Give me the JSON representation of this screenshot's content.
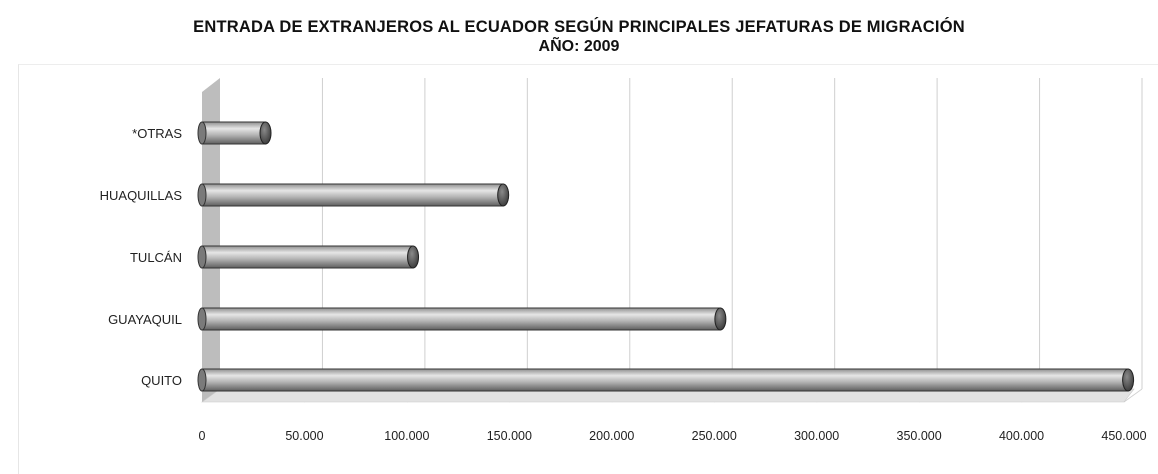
{
  "header": {
    "title": "ENTRADA DE EXTRANJEROS AL ECUADOR SEGÚN PRINCIPALES JEFATURAS DE MIGRACIÓN",
    "subtitle": "AÑO: 2009"
  },
  "colors": {
    "bar_light": "#d2d2d2",
    "bar_mid": "#a8a8a8",
    "bar_dark": "#6a6a6a",
    "wall": "#bdbdbd",
    "floor": "#e2e2e2",
    "grid": "#cfcfcf"
  },
  "chart_data": {
    "type": "bar",
    "orientation": "horizontal",
    "title": "ENTRADA DE EXTRANJEROS AL ECUADOR SEGÚN PRINCIPALES JEFATURAS DE MIGRACIÓN",
    "subtitle": "AÑO: 2009",
    "categories": [
      "*OTRAS",
      "HUAQUILLAS",
      "TULCÁN",
      "GUAYAQUIL",
      "QUITO"
    ],
    "values": [
      31000,
      147000,
      103000,
      253000,
      452000
    ],
    "xlim": [
      0,
      450000
    ],
    "x_ticks": [
      0,
      50000,
      100000,
      150000,
      200000,
      250000,
      300000,
      350000,
      400000,
      450000
    ],
    "x_tick_labels": [
      "0",
      "50.000",
      "100.000",
      "150.000",
      "200.000",
      "250.000",
      "300.000",
      "350.000",
      "400.000",
      "450.000"
    ],
    "grid": true,
    "legend": "none",
    "style": "3d-cylinder"
  }
}
